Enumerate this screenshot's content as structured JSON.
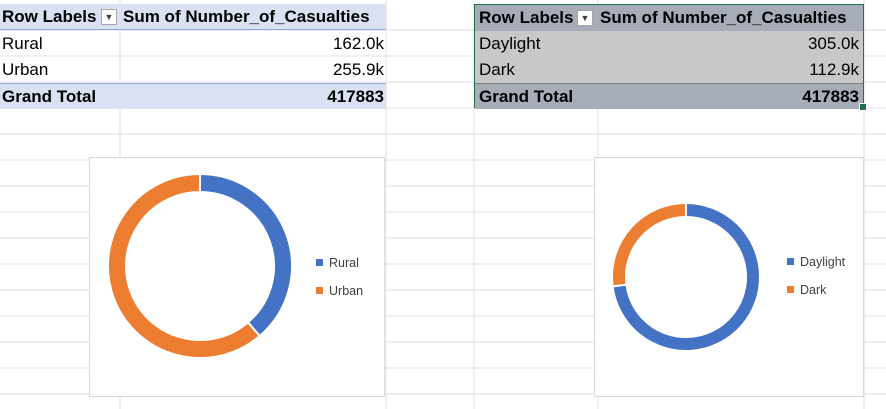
{
  "pivot_rural_urban": {
    "header_row_label": "Row Labels",
    "header_value": "Sum of Number_of_Casualties",
    "filter_icon": "dropdown-arrow-icon",
    "rows": [
      {
        "label": "Rural",
        "value": "162.0k"
      },
      {
        "label": "Urban",
        "value": "255.9k"
      }
    ],
    "total_label": "Grand Total",
    "total_value": "417883"
  },
  "pivot_light": {
    "header_row_label": "Row Labels",
    "header_value": "Sum of Number_of_Casualties",
    "filter_icon": "filter-applied-icon",
    "rows": [
      {
        "label": "Daylight",
        "value": "305.0k"
      },
      {
        "label": "Dark",
        "value": "112.9k"
      }
    ],
    "total_label": "Grand Total",
    "total_value": "417883"
  },
  "chart_data": [
    {
      "type": "pie",
      "style": "doughnut",
      "categories": [
        "Rural",
        "Urban"
      ],
      "values": [
        162.0,
        255.9
      ],
      "colors": [
        "#4472c4",
        "#ed7d31"
      ],
      "legend": "right"
    },
    {
      "type": "pie",
      "style": "doughnut",
      "categories": [
        "Daylight",
        "Dark"
      ],
      "values": [
        305.0,
        112.9
      ],
      "colors": [
        "#4472c4",
        "#ed7d31"
      ],
      "legend": "right"
    }
  ]
}
